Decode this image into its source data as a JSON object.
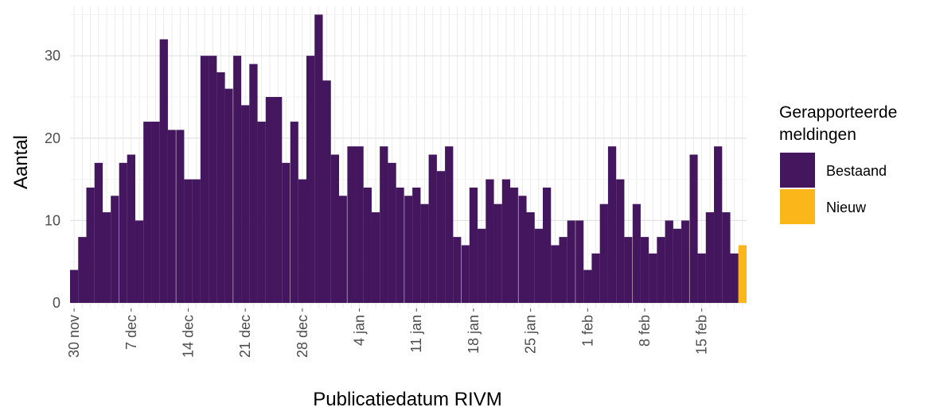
{
  "chart_data": {
    "type": "bar",
    "xlabel": "Publicatiedatum RIVM",
    "ylabel": "Aantal",
    "ylim": [
      0,
      36
    ],
    "yticks": [
      0,
      10,
      20,
      30
    ],
    "x_tick_labels": [
      "30 nov",
      "7 dec",
      "14 dec",
      "21 dec",
      "28 dec",
      "4 jan",
      "11 jan",
      "18 jan",
      "25 jan",
      "1 feb",
      "8 feb",
      "15 feb"
    ],
    "grid": true,
    "legend": {
      "title_lines": [
        "Gerapporteerde",
        "meldingen"
      ],
      "position": "right",
      "entries": [
        {
          "label": "Bestaand",
          "color": "#43165e"
        },
        {
          "label": "Nieuw",
          "color": "#fbb61a"
        }
      ]
    },
    "series": [
      {
        "name": "Bestaand",
        "color": "#43165e",
        "values": [
          4,
          8,
          14,
          17,
          11,
          13,
          17,
          18,
          10,
          22,
          22,
          32,
          21,
          21,
          15,
          15,
          30,
          30,
          28,
          26,
          30,
          24,
          29,
          22,
          25,
          25,
          17,
          22,
          15,
          30,
          35,
          27,
          18,
          13,
          19,
          19,
          14,
          11,
          19,
          17,
          14,
          13,
          14,
          12,
          18,
          16,
          19,
          8,
          7,
          14,
          9,
          15,
          12,
          15,
          14,
          13,
          11,
          9,
          14,
          7,
          8,
          10,
          10,
          4,
          6,
          12,
          19,
          15,
          8,
          12,
          8,
          6,
          8,
          10,
          9,
          10,
          18,
          6,
          11,
          19,
          11,
          6,
          0
        ]
      },
      {
        "name": "Nieuw",
        "color": "#fbb61a",
        "values": [
          0,
          0,
          0,
          0,
          0,
          0,
          0,
          0,
          0,
          0,
          0,
          0,
          0,
          0,
          0,
          0,
          0,
          0,
          0,
          0,
          0,
          0,
          0,
          0,
          0,
          0,
          0,
          0,
          0,
          0,
          0,
          0,
          0,
          0,
          0,
          0,
          0,
          0,
          0,
          0,
          0,
          0,
          0,
          0,
          0,
          0,
          0,
          0,
          0,
          0,
          0,
          0,
          0,
          0,
          0,
          0,
          0,
          0,
          0,
          0,
          0,
          0,
          0,
          0,
          0,
          0,
          0,
          0,
          0,
          0,
          0,
          0,
          0,
          0,
          0,
          0,
          0,
          0,
          0,
          0,
          0,
          0,
          7
        ]
      }
    ]
  }
}
